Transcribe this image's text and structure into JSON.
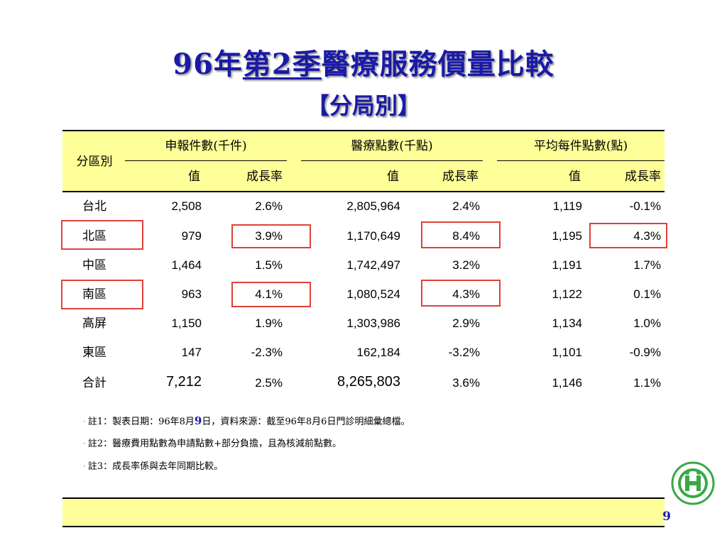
{
  "title": {
    "part1": "96年",
    "part2": "第2季",
    "part3": "醫療服務價量比較"
  },
  "subtitle": "【分局別】",
  "table": {
    "region_header": "分區別",
    "groups": [
      "申報件數(千件)",
      "醫療點數(千點)",
      "平均每件點數(點)"
    ],
    "sub_value": "值",
    "sub_growth": "成長率",
    "rows": [
      {
        "name": "台北",
        "c1": "2,508",
        "g1": "2.6%",
        "c2": "2,805,964",
        "g2": "2.4%",
        "c3": "1,119",
        "g3": "-0.1%"
      },
      {
        "name": "北區",
        "c1": "979",
        "g1": "3.9%",
        "c2": "1,170,649",
        "g2": "8.4%",
        "c3": "1,195",
        "g3": "4.3%"
      },
      {
        "name": "中區",
        "c1": "1,464",
        "g1": "1.5%",
        "c2": "1,742,497",
        "g2": "3.2%",
        "c3": "1,191",
        "g3": "1.7%"
      },
      {
        "name": "南區",
        "c1": "963",
        "g1": "4.1%",
        "c2": "1,080,524",
        "g2": "4.3%",
        "c3": "1,122",
        "g3": "0.1%"
      },
      {
        "name": "高屏",
        "c1": "1,150",
        "g1": "1.9%",
        "c2": "1,303,986",
        "g2": "2.9%",
        "c3": "1,134",
        "g3": "1.0%"
      },
      {
        "name": "東區",
        "c1": "147",
        "g1": "-2.3%",
        "c2": "162,184",
        "g2": "-3.2%",
        "c3": "1,101",
        "g3": "-0.9%"
      }
    ],
    "total": {
      "name": "合計",
      "c1": "7,212",
      "g1": "2.5%",
      "c2": "8,265,803",
      "g2": "3.6%",
      "c3": "1,146",
      "g3": "1.1%"
    }
  },
  "notes": {
    "n1a": "註1：製表日期：96年8月",
    "n1b": "9",
    "n1c": "日，資料來源：截至96年8月6日門診明細彙總檔。",
    "n2": "註2：醫療費用點數為申請點數+部分負擔，且為核減前點數。",
    "n3": "註3：成長率係與去年同期比較。"
  },
  "page_number": "9",
  "colors": {
    "title": "#1a1aa6",
    "header_bg": "#ffff99",
    "highlight_box": "#e0403a"
  },
  "logo_icon": "nhi-logo-icon"
}
